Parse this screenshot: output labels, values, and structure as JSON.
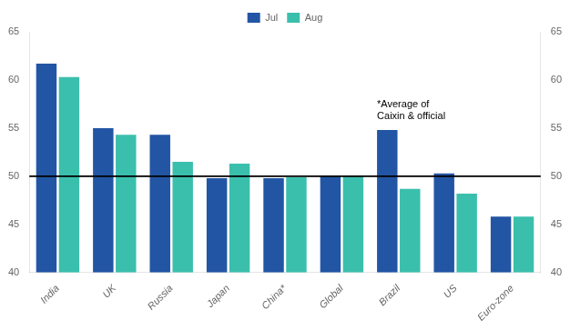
{
  "chart_data": {
    "type": "bar",
    "categories": [
      "India",
      "UK",
      "Russia",
      "Japan",
      "China*",
      "Global",
      "Brazil",
      "US",
      "Euro-zone"
    ],
    "series": [
      {
        "name": "Jul",
        "color": "#2255a4",
        "values": [
          61.7,
          55.0,
          54.3,
          49.8,
          49.8,
          50.0,
          54.8,
          50.3,
          45.8
        ]
      },
      {
        "name": "Aug",
        "color": "#3bbfad",
        "values": [
          60.3,
          54.3,
          51.5,
          51.3,
          49.9,
          50.0,
          48.7,
          48.2,
          45.8
        ]
      }
    ],
    "ylim": [
      40,
      65
    ],
    "yticks": [
      40,
      45,
      50,
      55,
      60,
      65
    ],
    "y2lim": [
      40,
      65
    ],
    "y2ticks": [
      40,
      45,
      50,
      55,
      60,
      65
    ],
    "hline": 50,
    "annotation": "*Average of\nCaixin & official",
    "legend": "top",
    "grid": false
  }
}
